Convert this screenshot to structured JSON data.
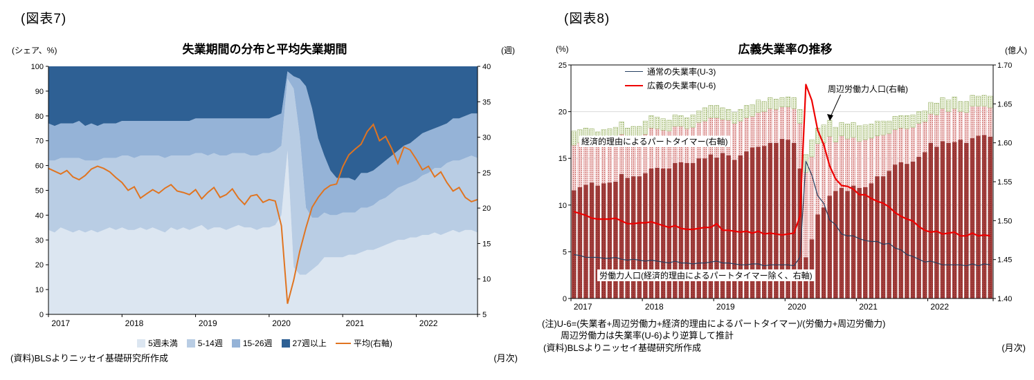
{
  "fig7": {
    "header": "(図表7)",
    "source": "(資料)BLSよりニッセイ基礎研究所作成",
    "freq_label": "(月次)"
  },
  "fig8": {
    "header": "(図表8)",
    "notes": [
      "(注)U-6=(失業者+周辺労働力+経済的理由によるパートタイマー)/(労働力+周辺労働力)",
      "周辺労働力は失業率(U-6)より逆算して推計"
    ],
    "source": "(資料)BLSよりニッセイ基礎研究所作成",
    "freq_label": "(月次)"
  },
  "chart_data": [
    {
      "type": "area",
      "title": "失業期間の分布と平均失業期間",
      "axis_labels": {
        "left": "(シェア、%)",
        "right": "(週)"
      },
      "ylim_left": [
        0,
        100
      ],
      "yticks_left": [
        0,
        10,
        20,
        30,
        40,
        50,
        60,
        70,
        80,
        90,
        100
      ],
      "ylim_right": [
        5,
        40
      ],
      "yticks_right": [
        5,
        10,
        15,
        20,
        25,
        30,
        35,
        40
      ],
      "x_tick_labels": [
        "2017",
        "2018",
        "2019",
        "2020",
        "2021",
        "2022"
      ],
      "x_year_starts": [
        0,
        12,
        24,
        36,
        48,
        60
      ],
      "legend_position": "bottom",
      "series": [
        {
          "name": "5週未満",
          "color": "#dce6f1",
          "values": [
            34,
            33,
            35,
            34,
            33,
            34,
            33,
            34,
            33,
            34,
            35,
            34,
            35,
            34,
            34,
            35,
            34,
            35,
            34,
            33,
            35,
            34,
            35,
            34,
            35,
            36,
            34,
            35,
            35,
            34,
            35,
            36,
            35,
            35,
            34,
            35,
            35,
            36,
            40,
            66,
            19,
            16,
            16,
            18,
            20,
            23,
            23,
            23,
            23,
            24,
            24,
            25,
            26,
            26,
            27,
            28,
            29,
            30,
            30,
            31,
            31,
            32,
            32,
            33,
            32,
            33,
            34,
            33,
            34,
            34,
            33
          ]
        },
        {
          "name": "5-14週",
          "color": "#b9cde4",
          "values": [
            28,
            29,
            28,
            29,
            30,
            29,
            29,
            28,
            29,
            29,
            28,
            29,
            29,
            30,
            29,
            29,
            30,
            29,
            30,
            30,
            29,
            30,
            29,
            30,
            30,
            29,
            30,
            30,
            29,
            30,
            30,
            29,
            30,
            29,
            30,
            30,
            30,
            30,
            28,
            29,
            72,
            56,
            27,
            21,
            19,
            18,
            17,
            17,
            18,
            17,
            17,
            18,
            17,
            18,
            19,
            19,
            20,
            21,
            22,
            22,
            23,
            24,
            25,
            26,
            27,
            28,
            28,
            29,
            29,
            30,
            30
          ]
        },
        {
          "name": "15-26週",
          "color": "#95b3d7",
          "values": [
            15,
            14,
            14,
            14,
            14,
            15,
            14,
            15,
            14,
            14,
            14,
            14,
            14,
            14,
            15,
            14,
            14,
            14,
            14,
            15,
            14,
            14,
            14,
            14,
            14,
            14,
            15,
            14,
            15,
            15,
            14,
            14,
            14,
            15,
            15,
            14,
            14,
            14,
            13,
            3,
            5,
            23,
            49,
            44,
            32,
            23,
            18,
            15,
            14,
            14,
            13,
            14,
            14,
            14,
            14,
            15,
            15,
            15,
            16,
            16,
            17,
            17,
            17,
            16,
            17,
            16,
            17,
            17,
            17,
            17,
            18
          ]
        },
        {
          "name": "27週以上",
          "color": "#2e6094",
          "values": [
            23,
            24,
            23,
            23,
            23,
            22,
            24,
            23,
            24,
            23,
            23,
            23,
            22,
            22,
            22,
            22,
            22,
            22,
            22,
            22,
            22,
            22,
            22,
            22,
            21,
            21,
            21,
            21,
            21,
            21,
            21,
            21,
            21,
            21,
            21,
            21,
            21,
            20,
            19,
            2,
            4,
            5,
            8,
            17,
            29,
            36,
            42,
            45,
            45,
            45,
            46,
            43,
            43,
            42,
            40,
            38,
            36,
            34,
            32,
            31,
            29,
            27,
            26,
            25,
            24,
            23,
            21,
            21,
            20,
            19,
            19
          ]
        }
      ],
      "line": {
        "name": "平均(右軸)",
        "color": "#e07420",
        "axis": "right",
        "values": [
          25.6,
          25.2,
          24.8,
          25.3,
          24.4,
          24.0,
          24.6,
          25.5,
          25.9,
          25.6,
          25.1,
          24.3,
          23.6,
          22.5,
          23.0,
          21.4,
          22.0,
          22.6,
          22.1,
          22.8,
          23.3,
          22.4,
          22.2,
          21.9,
          22.6,
          21.3,
          22.2,
          22.9,
          21.5,
          21.9,
          22.7,
          21.4,
          20.5,
          21.7,
          21.9,
          20.8,
          21.2,
          21.0,
          17.5,
          6.5,
          9.8,
          13.9,
          17.2,
          20.1,
          21.5,
          22.6,
          23.2,
          23.4,
          25.8,
          27.5,
          28.3,
          29.0,
          30.8,
          31.8,
          29.5,
          30.1,
          28.4,
          26.3,
          28.6,
          28.2,
          26.9,
          25.4,
          25.9,
          24.4,
          25.1,
          23.6,
          22.4,
          22.9,
          21.5,
          20.9,
          21.2
        ]
      }
    },
    {
      "type": "bar+line",
      "title": "広義失業率の推移",
      "axis_labels": {
        "left": "(%)",
        "right": "(億人)"
      },
      "ylim_left": [
        0,
        25
      ],
      "yticks_left": [
        0,
        5,
        10,
        15,
        20,
        25
      ],
      "ylim_right": [
        1.4,
        1.7
      ],
      "yticks_right": [
        1.4,
        1.45,
        1.5,
        1.55,
        1.6,
        1.65,
        1.7
      ],
      "x_tick_labels": [
        "2017",
        "2018",
        "2019",
        "2020",
        "2021",
        "2022"
      ],
      "x_year_starts": [
        0,
        12,
        24,
        36,
        48,
        60
      ],
      "lines": [
        {
          "name": "通常の失業率(U-3)",
          "color": "#243f60",
          "width": 1.2,
          "axis": "left",
          "values": [
            4.7,
            4.6,
            4.4,
            4.4,
            4.4,
            4.3,
            4.3,
            4.4,
            4.2,
            4.1,
            4.2,
            4.1,
            4.0,
            4.1,
            4.0,
            3.9,
            3.8,
            4.0,
            3.8,
            3.8,
            3.7,
            3.8,
            3.8,
            3.9,
            4.0,
            3.8,
            3.8,
            3.7,
            3.6,
            3.6,
            3.7,
            3.7,
            3.5,
            3.6,
            3.6,
            3.6,
            3.6,
            3.5,
            4.4,
            14.7,
            13.2,
            11.0,
            10.2,
            8.4,
            7.9,
            6.9,
            6.7,
            6.7,
            6.4,
            6.2,
            6.1,
            6.1,
            5.8,
            5.9,
            5.4,
            5.2,
            4.7,
            4.5,
            4.2,
            3.9,
            4.0,
            3.8,
            3.6,
            3.6,
            3.6,
            3.6,
            3.5,
            3.7,
            3.5,
            3.7,
            3.6
          ]
        },
        {
          "name": "広義の失業率(U-6)",
          "color": "#ee0000",
          "width": 2.2,
          "axis": "left",
          "values": [
            9.3,
            9.1,
            8.9,
            8.6,
            8.5,
            8.5,
            8.5,
            8.6,
            8.3,
            8.0,
            8.0,
            8.1,
            8.1,
            8.2,
            8.0,
            7.8,
            7.6,
            7.8,
            7.5,
            7.4,
            7.4,
            7.5,
            7.6,
            7.6,
            8.0,
            7.3,
            7.3,
            7.2,
            7.1,
            7.2,
            7.0,
            7.2,
            6.9,
            7.0,
            6.9,
            6.8,
            6.9,
            7.0,
            8.8,
            22.9,
            21.2,
            18.0,
            16.5,
            14.2,
            12.8,
            12.1,
            12.0,
            11.7,
            11.1,
            11.1,
            10.7,
            10.4,
            10.2,
            9.8,
            9.2,
            8.8,
            8.5,
            8.3,
            7.7,
            7.3,
            7.1,
            7.2,
            6.9,
            7.0,
            7.1,
            6.7,
            6.7,
            7.0,
            6.7,
            6.8,
            6.7
          ]
        }
      ],
      "bars": {
        "axis": "right",
        "unit": "億人",
        "series": [
          {
            "name": "労働力人口(経済的理由によるパートタイマー除く、右軸)",
            "base": "#a43f3d",
            "dot": "#7f2422"
          },
          {
            "name": "経済的理由によるパートタイマー(右軸)",
            "base": "#f3d3d3",
            "dot": "#c0504d"
          },
          {
            "name": "周辺労働力人口(右軸)",
            "base": "#eef3e0",
            "dot": "#94ae62"
          }
        ],
        "labor_force_total_millions": [
          159.7,
          160.0,
          160.2,
          160.2,
          159.8,
          160.1,
          160.2,
          160.3,
          161.1,
          160.4,
          160.5,
          160.6,
          161.1,
          161.9,
          161.8,
          161.6,
          161.5,
          162.1,
          162.1,
          161.8,
          162.0,
          162.6,
          162.8,
          163.2,
          163.2,
          163.0,
          162.9,
          162.5,
          162.8,
          163.2,
          163.4,
          163.9,
          164.0,
          164.4,
          164.3,
          164.6,
          164.6,
          164.4,
          162.5,
          156.2,
          158.2,
          159.9,
          160.0,
          160.8,
          160.1,
          160.9,
          160.5,
          160.7,
          160.2,
          160.4,
          160.6,
          160.9,
          161.0,
          161.2,
          161.7,
          161.9,
          161.8,
          162.0,
          162.5,
          162.7,
          163.7,
          163.6,
          164.4,
          164.0,
          164.4,
          164.0,
          163.9,
          164.7,
          164.7,
          164.7,
          164.5
        ],
        "part_time_econ_millions": [
          5.8,
          5.7,
          5.6,
          5.3,
          5.3,
          5.3,
          5.3,
          5.3,
          5.1,
          4.9,
          4.8,
          4.9,
          5.0,
          5.2,
          5.0,
          4.9,
          4.8,
          4.7,
          4.6,
          4.4,
          4.6,
          4.6,
          4.8,
          4.7,
          5.1,
          4.3,
          4.5,
          4.7,
          4.4,
          4.3,
          4.0,
          4.4,
          4.4,
          4.4,
          4.3,
          4.1,
          4.2,
          4.4,
          5.8,
          10.9,
          10.6,
          9.1,
          8.3,
          7.6,
          6.3,
          6.7,
          6.7,
          6.2,
          6.0,
          6.1,
          5.8,
          5.2,
          5.3,
          4.8,
          4.5,
          4.4,
          4.5,
          4.4,
          4.3,
          3.9,
          3.7,
          4.1,
          4.2,
          4.0,
          4.3,
          3.6,
          3.9,
          4.1,
          3.8,
          3.7,
          3.7
        ],
        "marginal_attached_millions": [
          1.8,
          1.7,
          1.7,
          1.6,
          1.6,
          1.6,
          1.6,
          1.7,
          1.6,
          1.5,
          1.6,
          1.5,
          1.7,
          1.6,
          1.5,
          1.5,
          1.4,
          1.5,
          1.4,
          1.4,
          1.6,
          1.5,
          1.7,
          1.6,
          1.6,
          1.5,
          1.4,
          1.4,
          1.5,
          1.6,
          1.5,
          1.6,
          1.3,
          1.4,
          1.3,
          1.2,
          1.3,
          1.4,
          1.8,
          2.3,
          2.2,
          2.0,
          2.3,
          2.1,
          1.9,
          1.7,
          1.9,
          1.9,
          2.0,
          1.9,
          1.8,
          1.9,
          1.8,
          1.6,
          1.7,
          1.6,
          1.7,
          1.6,
          1.5,
          1.4,
          1.5,
          1.5,
          1.4,
          1.5,
          1.5,
          1.3,
          1.4,
          1.4,
          1.3,
          1.4,
          1.5
        ]
      }
    }
  ]
}
